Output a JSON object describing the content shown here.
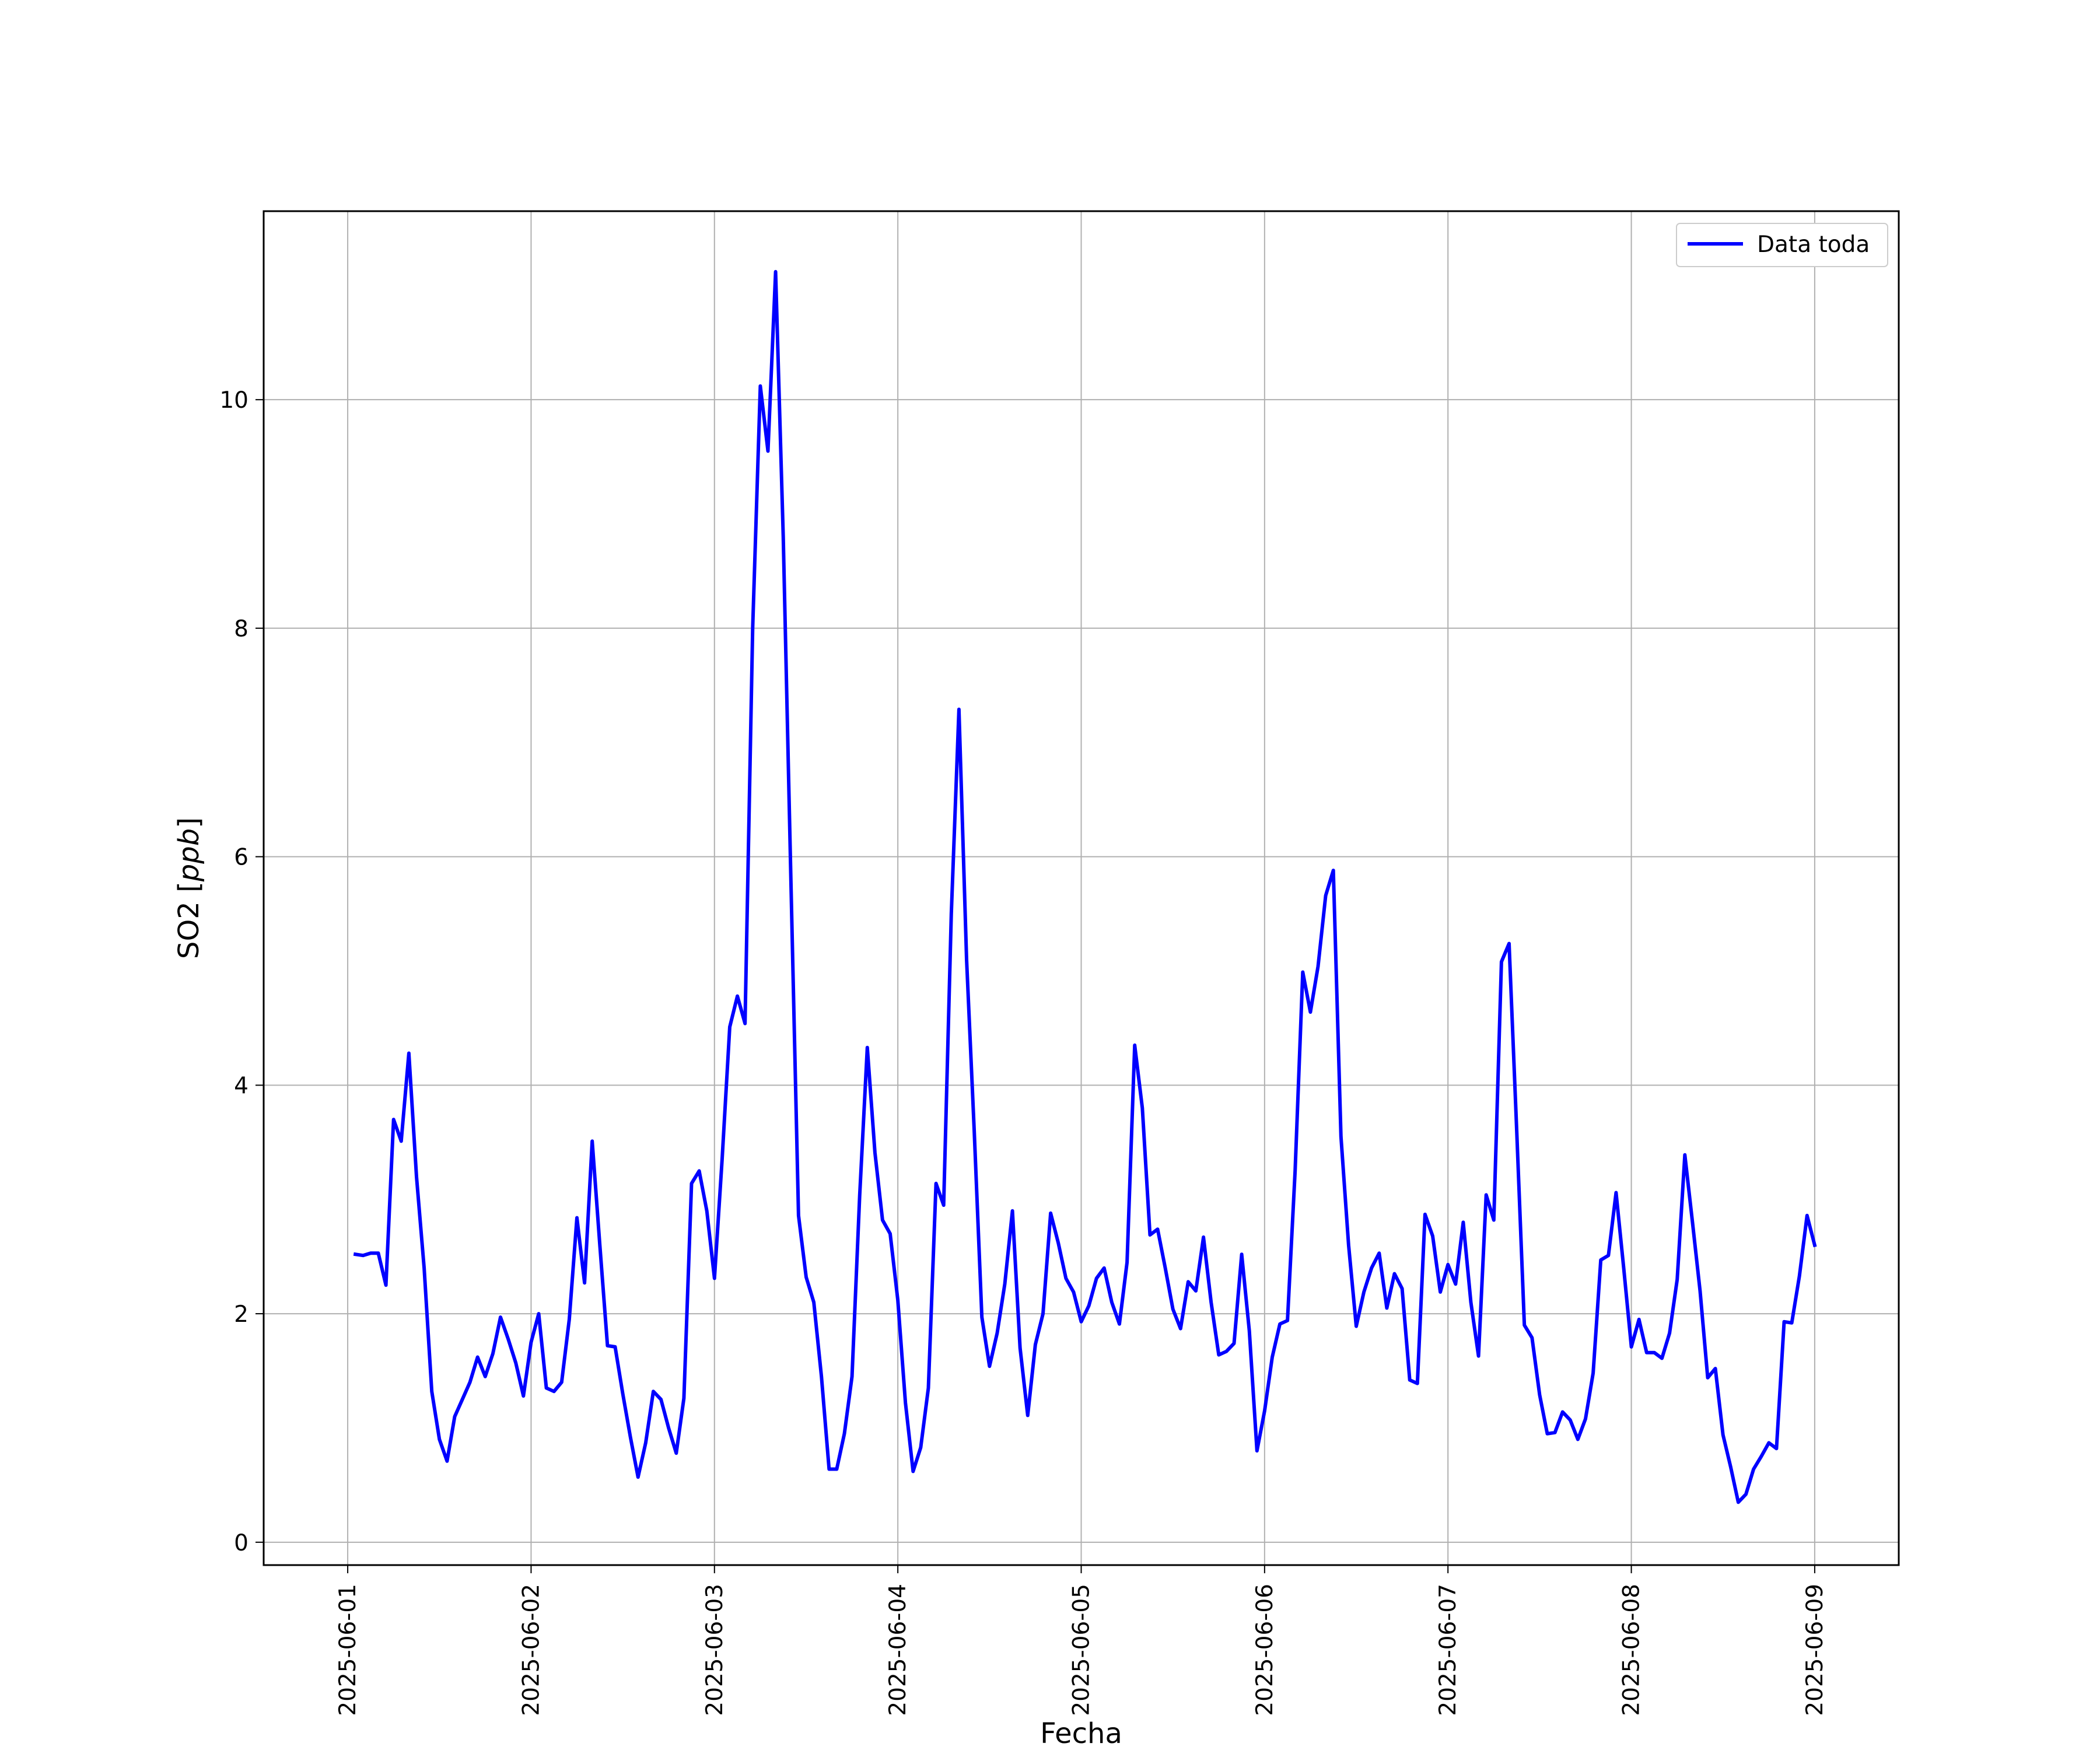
{
  "chart_data": {
    "type": "line",
    "title": "",
    "xlabel": "Fecha",
    "ylabel": "SO2 [ppb]",
    "ylabel_parts": {
      "plain": "SO2 [",
      "italic": "ppb",
      "close": "]"
    },
    "xlim": [
      "2025-05-31T13:00",
      "2025-06-09T11:00"
    ],
    "ylim": [
      -0.2,
      11.65
    ],
    "grid": true,
    "legend_position": "top-right",
    "x_ticks": [
      "2025-06-01",
      "2025-06-02",
      "2025-06-03",
      "2025-06-04",
      "2025-06-05",
      "2025-06-06",
      "2025-06-07",
      "2025-06-08",
      "2025-06-09"
    ],
    "y_ticks": [
      0,
      2,
      4,
      6,
      8,
      10
    ],
    "x_start": "2025-06-01T01:00",
    "x_step_hours": 1,
    "series": [
      {
        "name": "Data toda",
        "color": "#0000ff",
        "values": [
          2.52,
          2.51,
          2.53,
          2.53,
          2.25,
          3.7,
          3.51,
          4.28,
          3.2,
          2.4,
          1.32,
          0.9,
          0.71,
          1.1,
          1.25,
          1.4,
          1.62,
          1.45,
          1.65,
          1.97,
          1.78,
          1.57,
          1.28,
          1.75,
          2.0,
          1.35,
          1.32,
          1.4,
          1.95,
          2.84,
          2.27,
          3.51,
          2.6,
          1.72,
          1.71,
          1.3,
          0.92,
          0.57,
          0.87,
          1.32,
          1.25,
          1.0,
          0.78,
          1.26,
          3.14,
          3.25,
          2.9,
          2.31,
          3.35,
          4.51,
          4.78,
          4.54,
          8.0,
          10.12,
          9.55,
          11.12,
          8.8,
          5.8,
          2.86,
          2.32,
          2.1,
          1.45,
          0.64,
          0.64,
          0.95,
          1.45,
          3.03,
          4.33,
          3.41,
          2.82,
          2.7,
          2.12,
          1.22,
          0.62,
          0.83,
          1.35,
          3.14,
          2.95,
          5.5,
          7.29,
          5.1,
          3.6,
          1.97,
          1.54,
          1.83,
          2.26,
          2.9,
          1.7,
          1.11,
          1.73,
          2.0,
          2.88,
          2.62,
          2.31,
          2.19,
          1.93,
          2.07,
          2.31,
          2.4,
          2.1,
          1.91,
          2.45,
          4.35,
          3.8,
          2.69,
          2.74,
          2.4,
          2.04,
          1.87,
          2.28,
          2.2,
          2.67,
          2.1,
          1.64,
          1.67,
          1.74,
          2.52,
          1.85,
          0.8,
          1.15,
          1.62,
          1.91,
          1.94,
          3.25,
          4.99,
          4.64,
          5.04,
          5.66,
          5.88,
          3.55,
          2.6,
          1.89,
          2.19,
          2.4,
          2.53,
          2.05,
          2.35,
          2.22,
          1.42,
          1.39,
          2.87,
          2.68,
          2.19,
          2.43,
          2.26,
          2.8,
          2.1,
          1.63,
          3.04,
          2.82,
          5.08,
          5.24,
          3.6,
          1.9,
          1.79,
          1.29,
          0.95,
          0.96,
          1.14,
          1.07,
          0.9,
          1.08,
          1.48,
          2.47,
          2.51,
          3.06,
          2.4,
          1.71,
          1.95,
          1.66,
          1.66,
          1.61,
          1.83,
          2.3,
          3.39,
          2.8,
          2.2,
          1.44,
          1.52,
          0.94,
          0.66,
          0.35,
          0.42,
          0.64,
          0.75,
          0.87,
          0.82,
          1.93,
          1.92,
          2.33,
          2.86,
          2.6
        ]
      }
    ]
  }
}
